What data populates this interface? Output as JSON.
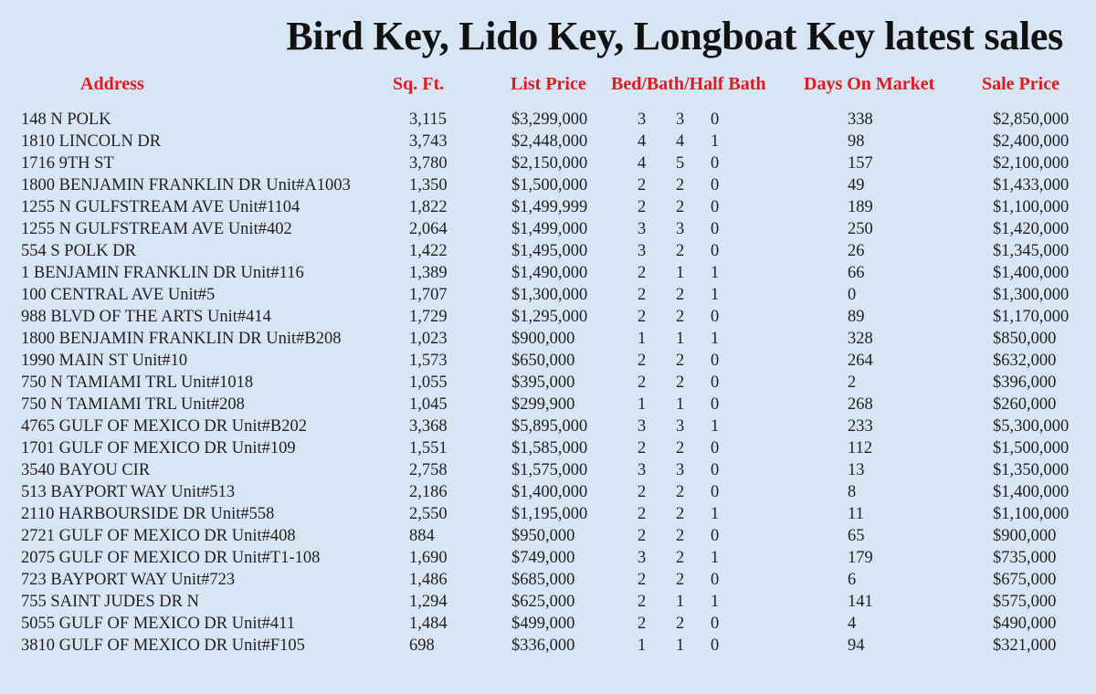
{
  "title": "Bird Key, Lido Key, Longboat Key latest sales",
  "headers": {
    "address": "Address",
    "sqft": "Sq. Ft.",
    "list_price": "List Price",
    "bed_bath": "Bed/Bath/Half Bath",
    "days": "Days On Market",
    "sale_price": "Sale Price"
  },
  "rows": [
    {
      "address": "148 N POLK",
      "sqft": "3,115",
      "list": "$3,299,000",
      "bed": "3",
      "bath": "3",
      "half": "0",
      "days": "338",
      "sale": "$2,850,000"
    },
    {
      "address": "1810 LINCOLN DR",
      "sqft": "3,743",
      "list": "$2,448,000",
      "bed": "4",
      "bath": "4",
      "half": "1",
      "days": "98",
      "sale": "$2,400,000"
    },
    {
      "address": "1716 9TH ST",
      "sqft": "3,780",
      "list": "$2,150,000",
      "bed": "4",
      "bath": "5",
      "half": "0",
      "days": "157",
      "sale": "$2,100,000"
    },
    {
      "address": "1800 BENJAMIN FRANKLIN DR Unit#A1003",
      "sqft": "1,350",
      "list": "$1,500,000",
      "bed": "2",
      "bath": "2",
      "half": "0",
      "days": "49",
      "sale": "$1,433,000"
    },
    {
      "address": "1255 N GULFSTREAM AVE Unit#1104",
      "sqft": "1,822",
      "list": "$1,499,999",
      "bed": "2",
      "bath": "2",
      "half": "0",
      "days": "189",
      "sale": "$1,100,000"
    },
    {
      "address": "1255 N GULFSTREAM AVE Unit#402",
      "sqft": "2,064",
      "list": "$1,499,000",
      "bed": "3",
      "bath": "3",
      "half": "0",
      "days": "250",
      "sale": "$1,420,000"
    },
    {
      "address": "554 S POLK DR",
      "sqft": "1,422",
      "list": "$1,495,000",
      "bed": "3",
      "bath": "2",
      "half": "0",
      "days": "26",
      "sale": "$1,345,000"
    },
    {
      "address": "1 BENJAMIN FRANKLIN DR Unit#116",
      "sqft": "1,389",
      "list": "$1,490,000",
      "bed": "2",
      "bath": "1",
      "half": "1",
      "days": "66",
      "sale": "$1,400,000"
    },
    {
      "address": "100 CENTRAL AVE Unit#5",
      "sqft": "1,707",
      "list": "$1,300,000",
      "bed": "2",
      "bath": "2",
      "half": "1",
      "days": "0",
      "sale": "$1,300,000"
    },
    {
      "address": "988 BLVD OF THE ARTS Unit#414",
      "sqft": "1,729",
      "list": "$1,295,000",
      "bed": "2",
      "bath": "2",
      "half": "0",
      "days": "89",
      "sale": "$1,170,000"
    },
    {
      "address": "1800 BENJAMIN FRANKLIN DR Unit#B208",
      "sqft": "1,023",
      "list": "$900,000",
      "bed": "1",
      "bath": "1",
      "half": "1",
      "days": "328",
      "sale": "$850,000"
    },
    {
      "address": "1990 MAIN ST Unit#10",
      "sqft": "1,573",
      "list": "$650,000",
      "bed": "2",
      "bath": "2",
      "half": "0",
      "days": "264",
      "sale": "$632,000"
    },
    {
      "address": "750 N TAMIAMI TRL Unit#1018",
      "sqft": "1,055",
      "list": "$395,000",
      "bed": "2",
      "bath": "2",
      "half": "0",
      "days": "2",
      "sale": "$396,000"
    },
    {
      "address": "750 N TAMIAMI TRL Unit#208",
      "sqft": "1,045",
      "list": "$299,900",
      "bed": "1",
      "bath": "1",
      "half": "0",
      "days": "268",
      "sale": "$260,000"
    },
    {
      "address": "4765 GULF OF MEXICO DR Unit#B202",
      "sqft": "3,368",
      "list": "$5,895,000",
      "bed": "3",
      "bath": "3",
      "half": "1",
      "days": "233",
      "sale": "$5,300,000"
    },
    {
      "address": "1701 GULF OF MEXICO DR Unit#109",
      "sqft": "1,551",
      "list": "$1,585,000",
      "bed": "2",
      "bath": "2",
      "half": "0",
      "days": "112",
      "sale": "$1,500,000"
    },
    {
      "address": "3540 BAYOU CIR",
      "sqft": "2,758",
      "list": "$1,575,000",
      "bed": "3",
      "bath": "3",
      "half": "0",
      "days": "13",
      "sale": "$1,350,000"
    },
    {
      "address": "513 BAYPORT WAY Unit#513",
      "sqft": "2,186",
      "list": "$1,400,000",
      "bed": "2",
      "bath": "2",
      "half": "0",
      "days": "8",
      "sale": "$1,400,000"
    },
    {
      "address": "2110 HARBOURSIDE DR Unit#558",
      "sqft": "2,550",
      "list": "$1,195,000",
      "bed": "2",
      "bath": "2",
      "half": "1",
      "days": "11",
      "sale": "$1,100,000"
    },
    {
      "address": "2721 GULF OF MEXICO DR Unit#408",
      "sqft": "884",
      "list": "$950,000",
      "bed": "2",
      "bath": "2",
      "half": "0",
      "days": "65",
      "sale": "$900,000"
    },
    {
      "address": "2075 GULF OF MEXICO DR Unit#T1-108",
      "sqft": "1,690",
      "list": "$749,000",
      "bed": "3",
      "bath": "2",
      "half": "1",
      "days": "179",
      "sale": "$735,000"
    },
    {
      "address": "723 BAYPORT WAY Unit#723",
      "sqft": "1,486",
      "list": "$685,000",
      "bed": "2",
      "bath": "2",
      "half": "0",
      "days": "6",
      "sale": "$675,000"
    },
    {
      "address": "755 SAINT JUDES DR N",
      "sqft": "1,294",
      "list": "$625,000",
      "bed": "2",
      "bath": "1",
      "half": "1",
      "days": "141",
      "sale": "$575,000"
    },
    {
      "address": "5055 GULF OF MEXICO DR Unit#411",
      "sqft": "1,484",
      "list": "$499,000",
      "bed": "2",
      "bath": "2",
      "half": "0",
      "days": "4",
      "sale": "$490,000"
    },
    {
      "address": "3810 GULF OF MEXICO DR Unit#F105",
      "sqft": "698",
      "list": "$336,000",
      "bed": "1",
      "bath": "1",
      "half": "0",
      "days": "94",
      "sale": "$321,000"
    }
  ]
}
